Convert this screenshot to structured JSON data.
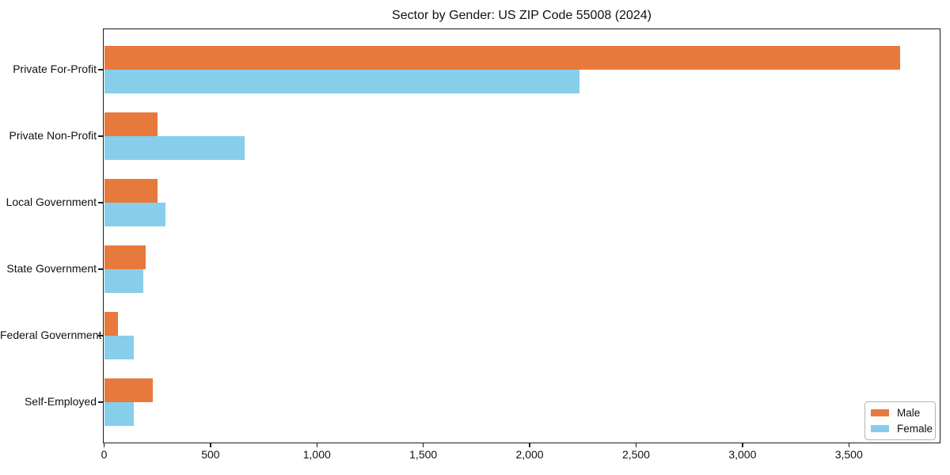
{
  "chart_data": {
    "type": "bar",
    "orientation": "horizontal",
    "title": "Sector by Gender: US ZIP Code 55008 (2024)",
    "categories": [
      "Private For-Profit",
      "Private Non-Profit",
      "Local Government",
      "State Government",
      "Federal Government",
      "Self-Employed"
    ],
    "series": [
      {
        "name": "Male",
        "color": "#e8793c",
        "values": [
          3740,
          250,
          250,
          195,
          65,
          228
        ]
      },
      {
        "name": "Female",
        "color": "#87ceeb",
        "values": [
          2235,
          660,
          290,
          185,
          138,
          140
        ]
      }
    ],
    "xlabel": "",
    "ylabel": "",
    "xlim": [
      0,
      3925
    ],
    "xticks": {
      "values": [
        0,
        500,
        1000,
        1500,
        2000,
        2500,
        3000,
        3500
      ],
      "labels": [
        "0",
        "500",
        "1,000",
        "1,500",
        "2,000",
        "2,500",
        "3,000",
        "3,500"
      ]
    },
    "grid": false,
    "legend_position": "lower right"
  },
  "colors": {
    "male": "#e8793c",
    "female": "#87ceeb",
    "axis": "#1c1c1c",
    "text": "#111111"
  }
}
